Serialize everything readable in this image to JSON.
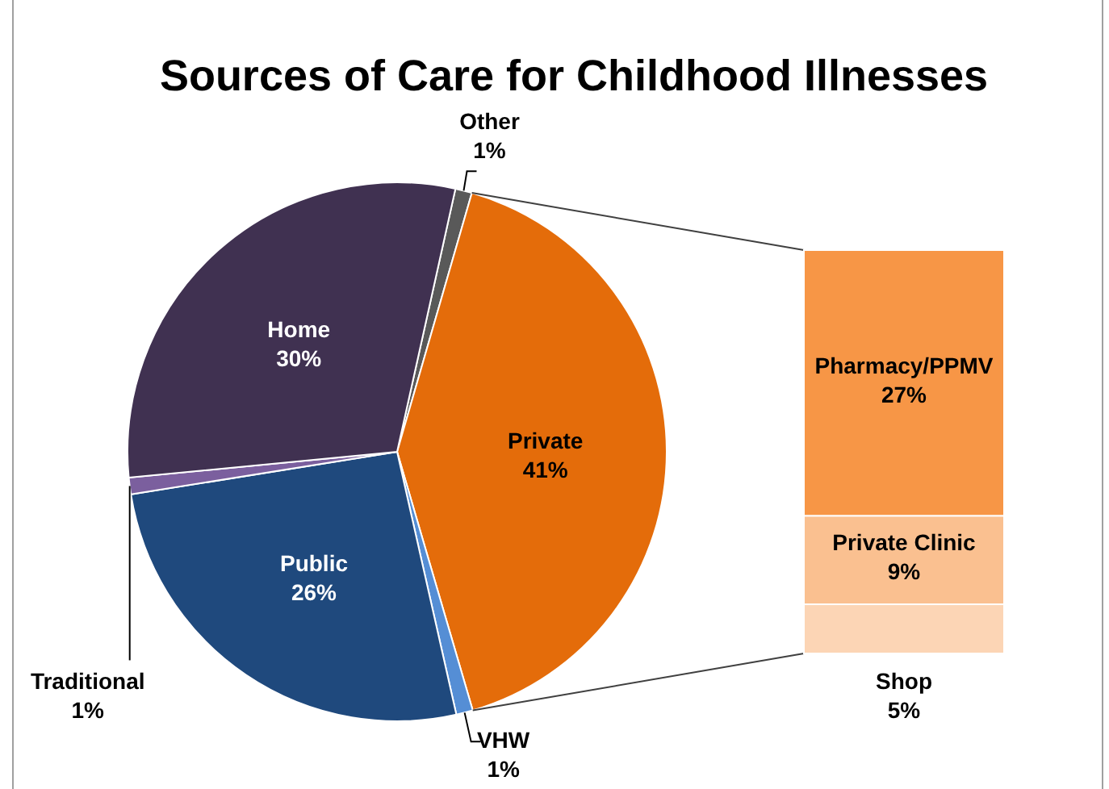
{
  "chart_data": [
    {
      "type": "pie",
      "title": "Sources of Care for Childhood Illnesses",
      "categories": [
        "Other",
        "Private",
        "VHW",
        "Public",
        "Traditional",
        "Home"
      ],
      "values": [
        1,
        41,
        1,
        26,
        1,
        30
      ],
      "value_labels": [
        "1%",
        "41%",
        "1%",
        "26%",
        "1%",
        "30%"
      ],
      "colors": [
        "#595959",
        "#e46c0a",
        "#558ed5",
        "#1f497d",
        "#7b5f9e",
        "#403151"
      ]
    },
    {
      "type": "bar",
      "stacked": true,
      "categories": [
        null
      ],
      "series": [
        {
          "name": "Shop",
          "color": "#fcd5b5",
          "values": [
            5
          ],
          "value_labels": [
            "5%"
          ]
        },
        {
          "name": "Private Clinic",
          "color": "#fac090",
          "values": [
            9
          ],
          "value_labels": [
            "9%"
          ]
        },
        {
          "name": "Pharmacy/PPMV",
          "color": "#f79646",
          "values": [
            27
          ],
          "value_labels": [
            "27%"
          ]
        }
      ]
    }
  ]
}
